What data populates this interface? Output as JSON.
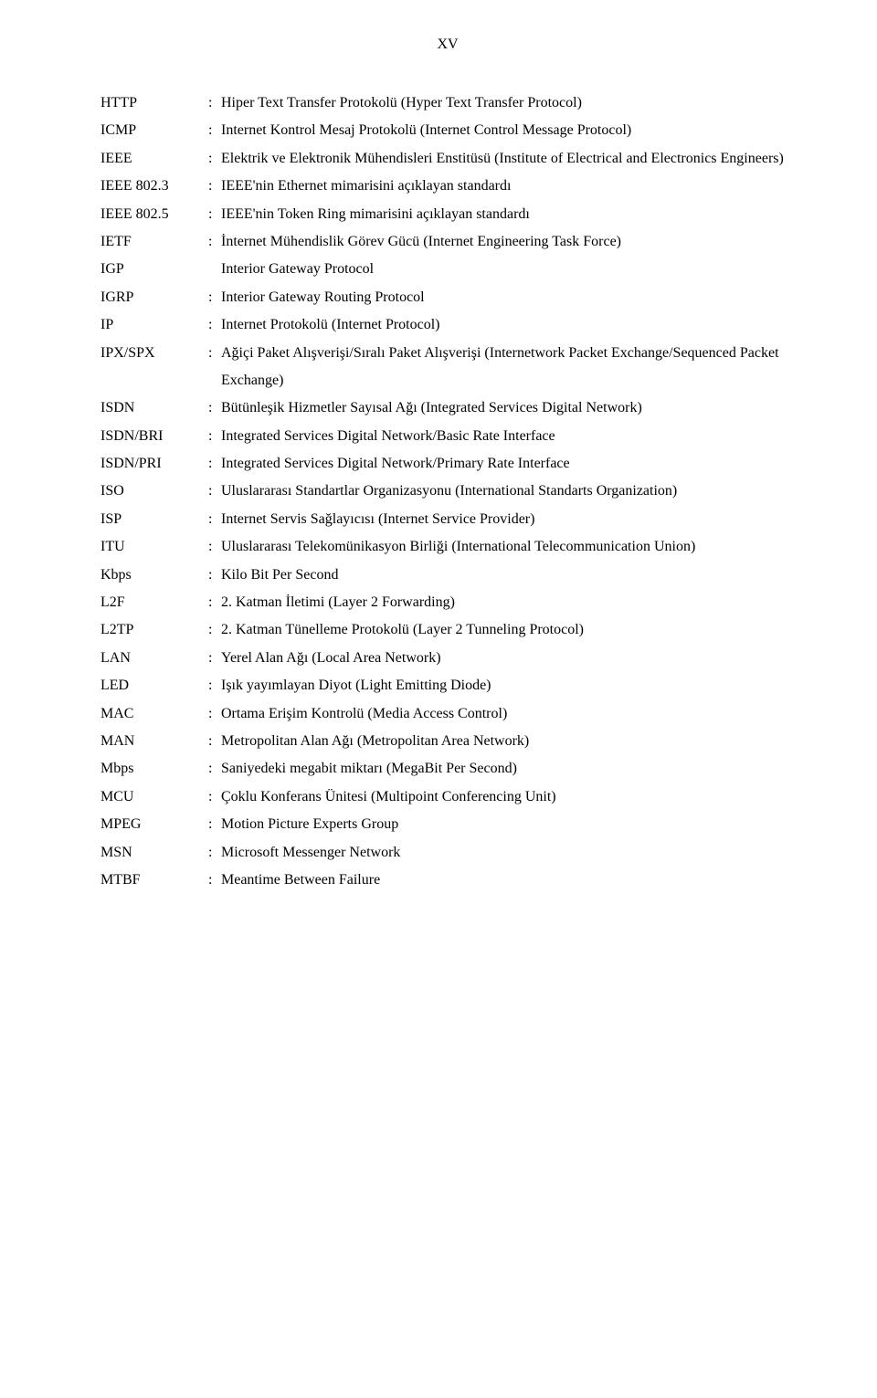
{
  "page_number": "XV",
  "fonts": {
    "body": "Times New Roman",
    "size_pt": 12
  },
  "colors": {
    "text": "#000000",
    "background": "#ffffff"
  },
  "entries": [
    {
      "abbr": "HTTP",
      "colon": ":",
      "def": "Hiper Text Transfer Protokolü (Hyper Text Transfer Protocol)"
    },
    {
      "abbr": "ICMP",
      "colon": ":",
      "def": "Internet Kontrol Mesaj Protokolü (Internet Control Message Protocol)"
    },
    {
      "abbr": "IEEE",
      "colon": ":",
      "def": "Elektrik ve Elektronik Mühendisleri Enstitüsü (Institute of Electrical and Electronics Engineers)"
    },
    {
      "abbr": "IEEE 802.3",
      "colon": ":",
      "def": "IEEE'nin Ethernet mimarisini açıklayan standardı"
    },
    {
      "abbr": "IEEE 802.5",
      "colon": ":",
      "def": "IEEE'nin Token Ring mimarisini açıklayan standardı"
    },
    {
      "abbr": "IETF",
      "colon": ":",
      "def": "İnternet Mühendislik Görev Gücü (Internet Engineering Task Force)"
    },
    {
      "abbr": "IGP",
      "colon": "",
      "def": "Interior Gateway Protocol"
    },
    {
      "abbr": "IGRP",
      "colon": ":",
      "def": "Interior Gateway Routing Protocol"
    },
    {
      "abbr": "IP",
      "colon": ":",
      "def": "Internet Protokolü (Internet Protocol)"
    },
    {
      "abbr": "IPX/SPX",
      "colon": ":",
      "def": "Ağiçi Paket Alışverişi/Sıralı Paket Alışverişi (Internetwork Packet Exchange/Sequenced Packet Exchange)"
    },
    {
      "abbr": "ISDN",
      "colon": ":",
      "def": "Bütünleşik Hizmetler Sayısal Ağı (Integrated Services Digital Network)"
    },
    {
      "abbr": "ISDN/BRI",
      "colon": ":",
      "def": "Integrated Services Digital Network/Basic Rate Interface"
    },
    {
      "abbr": "ISDN/PRI",
      "colon": ":",
      "def": "Integrated Services Digital Network/Primary Rate Interface"
    },
    {
      "abbr": "ISO",
      "colon": ":",
      "def": "Uluslararası Standartlar Organizasyonu (International Standarts Organization)"
    },
    {
      "abbr": "ISP",
      "colon": ":",
      "def": "Internet Servis Sağlayıcısı (Internet Service Provider)"
    },
    {
      "abbr": "ITU",
      "colon": ":",
      "def": "Uluslararası Telekomünikasyon Birliği (International Telecommunication Union)"
    },
    {
      "abbr": "Kbps",
      "colon": ":",
      "def": "Kilo Bit Per Second"
    },
    {
      "abbr": "L2F",
      "colon": ":",
      "def": "2. Katman İletimi (Layer 2 Forwarding)"
    },
    {
      "abbr": "L2TP",
      "colon": ":",
      "def": "2. Katman Tünelleme Protokolü (Layer 2 Tunneling Protocol)"
    },
    {
      "abbr": "LAN",
      "colon": ":",
      "def": "Yerel Alan Ağı (Local Area Network)"
    },
    {
      "abbr": "LED",
      "colon": ":",
      "def": "Işık yayımlayan Diyot (Light Emitting Diode)"
    },
    {
      "abbr": "MAC",
      "colon": ":",
      "def": "Ortama Erişim Kontrolü (Media Access Control)"
    },
    {
      "abbr": "MAN",
      "colon": ":",
      "def": "Metropolitan Alan Ağı (Metropolitan Area Network)"
    },
    {
      "abbr": "Mbps",
      "colon": ":",
      "def": "Saniyedeki megabit miktarı (MegaBit Per Second)"
    },
    {
      "abbr": "MCU",
      "colon": ":",
      "def": "Çoklu Konferans Ünitesi (Multipoint Conferencing Unit)"
    },
    {
      "abbr": "MPEG",
      "colon": ":",
      "def": "Motion Picture Experts Group"
    },
    {
      "abbr": "MSN",
      "colon": ":",
      "def": "Microsoft Messenger Network"
    },
    {
      "abbr": "MTBF",
      "colon": ":",
      "def": "Meantime Between Failure"
    }
  ]
}
